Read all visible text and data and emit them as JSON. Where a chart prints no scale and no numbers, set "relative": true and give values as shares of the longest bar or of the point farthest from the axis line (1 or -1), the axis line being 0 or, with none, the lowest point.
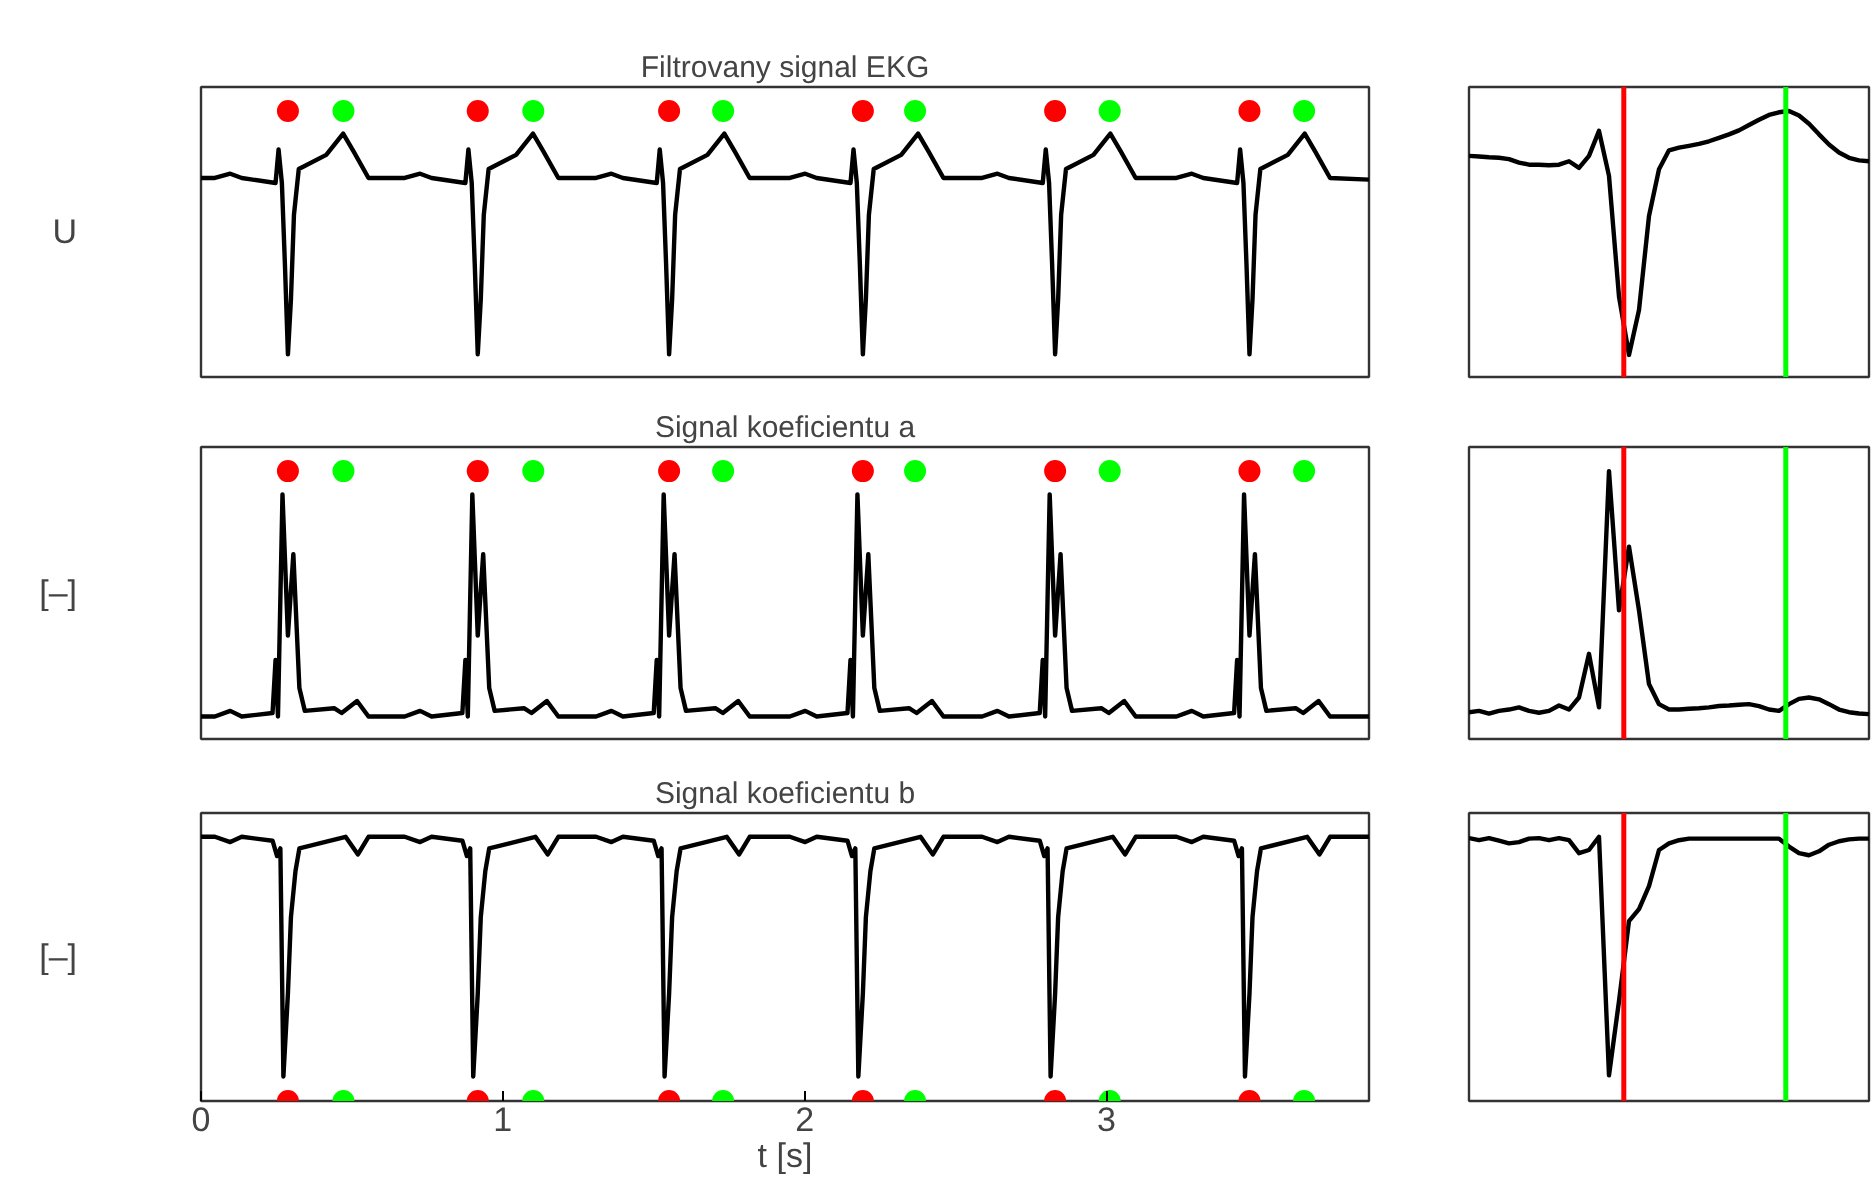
{
  "chart_data": [
    {
      "type": "line",
      "title": "Filtrovany signal EKG",
      "ylabel": "U",
      "relative": true,
      "xlim": [
        0,
        3.87
      ],
      "tick_labels": false,
      "series": [
        {
          "color": "#000000",
          "x": [
            0,
            0.046,
            0.097,
            0.135,
            0.247,
            0.257,
            0.268,
            0.278,
            0.288,
            0.298,
            0.308,
            0.324,
            0.415,
            0.471,
            0.505,
            0.555,
            0.675,
            0.726,
            0.764,
            0.876,
            0.886,
            0.897,
            0.907,
            0.917,
            0.927,
            0.937,
            0.953,
            1.044,
            1.1,
            1.134,
            1.184,
            1.309,
            1.36,
            1.398,
            1.51,
            1.52,
            1.531,
            1.541,
            1.551,
            1.561,
            1.571,
            1.587,
            1.678,
            1.734,
            1.768,
            1.818,
            1.951,
            2.002,
            2.04,
            2.152,
            2.162,
            2.173,
            2.183,
            2.193,
            2.203,
            2.213,
            2.229,
            2.32,
            2.376,
            2.41,
            2.46,
            2.588,
            2.639,
            2.677,
            2.789,
            2.799,
            2.81,
            2.82,
            2.83,
            2.84,
            2.85,
            2.866,
            2.957,
            3.013,
            3.047,
            3.097,
            3.232,
            3.283,
            3.321,
            3.433,
            3.443,
            3.454,
            3.464,
            3.474,
            3.484,
            3.494,
            3.51,
            3.601,
            3.657,
            3.691,
            3.741,
            3.87
          ],
          "values": [
            0.748,
            0.748,
            0.764,
            0.748,
            0.729,
            0.855,
            0.729,
            0.425,
            0.085,
            0.292,
            0.61,
            0.782,
            0.835,
            0.915,
            0.849,
            0.748,
            0.748,
            0.764,
            0.748,
            0.729,
            0.855,
            0.729,
            0.425,
            0.085,
            0.292,
            0.61,
            0.782,
            0.835,
            0.915,
            0.849,
            0.748,
            0.748,
            0.764,
            0.748,
            0.729,
            0.855,
            0.729,
            0.425,
            0.085,
            0.292,
            0.61,
            0.782,
            0.835,
            0.915,
            0.849,
            0.748,
            0.748,
            0.764,
            0.748,
            0.729,
            0.855,
            0.729,
            0.425,
            0.085,
            0.292,
            0.61,
            0.782,
            0.835,
            0.915,
            0.849,
            0.748,
            0.748,
            0.764,
            0.748,
            0.729,
            0.855,
            0.729,
            0.425,
            0.085,
            0.292,
            0.61,
            0.782,
            0.835,
            0.915,
            0.849,
            0.748,
            0.748,
            0.764,
            0.748,
            0.729,
            0.855,
            0.729,
            0.425,
            0.085,
            0.292,
            0.61,
            0.782,
            0.835,
            0.915,
            0.849,
            0.748,
            0.742
          ]
        },
        {
          "type": "scatter",
          "marker": "circle",
          "color": "#ff0000",
          "x": [
            0.288,
            0.917,
            1.551,
            2.193,
            2.83,
            3.474
          ],
          "values": [
            1,
            1,
            1,
            1,
            1,
            1
          ]
        },
        {
          "type": "scatter",
          "marker": "circle",
          "color": "#00ff00",
          "x": [
            0.472,
            1.101,
            1.73,
            2.366,
            3.011,
            3.655
          ],
          "values": [
            1,
            1,
            1,
            1,
            1,
            1
          ]
        }
      ]
    },
    {
      "type": "line",
      "relative": true,
      "tick_labels": false,
      "categories": [
        null,
        null,
        null,
        null,
        null,
        null,
        null,
        null,
        null,
        null,
        null,
        null,
        null,
        null,
        null,
        null,
        null,
        null,
        null,
        null,
        null,
        null,
        null,
        null,
        null,
        null,
        null,
        null,
        null,
        null,
        null,
        null,
        null,
        null,
        null,
        null,
        null,
        null,
        null,
        null,
        null
      ],
      "series": [
        {
          "color": "#000000",
          "values": [
            0.831,
            0.829,
            0.826,
            0.824,
            0.819,
            0.806,
            0.798,
            0.798,
            0.796,
            0.798,
            0.811,
            0.786,
            0.831,
            0.925,
            0.756,
            0.302,
            0.083,
            0.252,
            0.605,
            0.781,
            0.852,
            0.862,
            0.869,
            0.876,
            0.886,
            0.899,
            0.912,
            0.927,
            0.947,
            0.967,
            0.985,
            0.995,
            1.0,
            0.983,
            0.952,
            0.912,
            0.874,
            0.844,
            0.824,
            0.814,
            0.811
          ]
        }
      ]
    },
    {
      "type": "line",
      "title": "Signal koeficientu a",
      "ylabel": "[–]",
      "relative": true,
      "xlim": [
        0,
        3.87
      ],
      "tick_labels": false,
      "series": [
        {
          "color": "#000000",
          "x": [
            0,
            0.046,
            0.097,
            0.135,
            0.237,
            0.247,
            0.255,
            0.27,
            0.288,
            0.306,
            0.326,
            0.344,
            0.441,
            0.466,
            0.517,
            0.555,
            0.675,
            0.726,
            0.764,
            0.866,
            0.876,
            0.884,
            0.899,
            0.917,
            0.935,
            0.955,
            0.973,
            1.07,
            1.095,
            1.146,
            1.184,
            1.309,
            1.36,
            1.398,
            1.5,
            1.51,
            1.518,
            1.533,
            1.551,
            1.569,
            1.589,
            1.607,
            1.704,
            1.729,
            1.78,
            1.818,
            1.951,
            2.002,
            2.04,
            2.142,
            2.152,
            2.16,
            2.175,
            2.193,
            2.211,
            2.231,
            2.249,
            2.346,
            2.371,
            2.422,
            2.46,
            2.588,
            2.639,
            2.677,
            2.779,
            2.789,
            2.797,
            2.812,
            2.83,
            2.848,
            2.868,
            2.886,
            2.983,
            3.008,
            3.059,
            3.097,
            3.232,
            3.283,
            3.321,
            3.423,
            3.433,
            3.441,
            3.456,
            3.474,
            3.492,
            3.512,
            3.53,
            3.627,
            3.652,
            3.703,
            3.741,
            3.87
          ],
          "values": [
            0.084,
            0.084,
            0.105,
            0.084,
            0.097,
            0.295,
            0.084,
            0.913,
            0.386,
            0.69,
            0.19,
            0.105,
            0.115,
            0.097,
            0.142,
            0.084,
            0.084,
            0.105,
            0.084,
            0.097,
            0.295,
            0.084,
            0.913,
            0.386,
            0.69,
            0.19,
            0.105,
            0.115,
            0.097,
            0.142,
            0.084,
            0.084,
            0.105,
            0.084,
            0.097,
            0.295,
            0.084,
            0.913,
            0.386,
            0.69,
            0.19,
            0.105,
            0.115,
            0.097,
            0.142,
            0.084,
            0.084,
            0.105,
            0.084,
            0.097,
            0.295,
            0.084,
            0.913,
            0.386,
            0.69,
            0.19,
            0.105,
            0.115,
            0.097,
            0.142,
            0.084,
            0.084,
            0.105,
            0.084,
            0.097,
            0.295,
            0.084,
            0.913,
            0.386,
            0.69,
            0.19,
            0.105,
            0.115,
            0.097,
            0.142,
            0.084,
            0.084,
            0.105,
            0.084,
            0.097,
            0.295,
            0.084,
            0.913,
            0.386,
            0.69,
            0.19,
            0.105,
            0.115,
            0.097,
            0.142,
            0.084,
            0.084
          ]
        },
        {
          "type": "scatter",
          "marker": "circle",
          "color": "#ff0000",
          "x": [
            0.288,
            0.917,
            1.551,
            2.193,
            2.83,
            3.474
          ],
          "values": [
            1,
            1,
            1,
            1,
            1,
            1
          ]
        },
        {
          "type": "scatter",
          "marker": "circle",
          "color": "#00ff00",
          "x": [
            0.472,
            1.101,
            1.73,
            2.366,
            3.011,
            3.655
          ],
          "values": [
            1,
            1,
            1,
            1,
            1,
            1
          ]
        }
      ]
    },
    {
      "type": "line",
      "relative": true,
      "tick_labels": false,
      "categories": [
        null,
        null,
        null,
        null,
        null,
        null,
        null,
        null,
        null,
        null,
        null,
        null,
        null,
        null,
        null,
        null,
        null,
        null,
        null,
        null,
        null,
        null,
        null,
        null,
        null,
        null,
        null,
        null,
        null,
        null,
        null,
        null,
        null,
        null,
        null,
        null,
        null,
        null,
        null,
        null,
        null
      ],
      "series": [
        {
          "color": "#000000",
          "values": [
            0.1,
            0.105,
            0.095,
            0.105,
            0.11,
            0.118,
            0.105,
            0.098,
            0.105,
            0.125,
            0.11,
            0.155,
            0.318,
            0.118,
            1.0,
            0.48,
            0.718,
            0.48,
            0.205,
            0.13,
            0.11,
            0.11,
            0.113,
            0.115,
            0.118,
            0.123,
            0.125,
            0.128,
            0.13,
            0.123,
            0.11,
            0.105,
            0.13,
            0.15,
            0.155,
            0.148,
            0.13,
            0.11,
            0.1,
            0.095,
            0.093
          ]
        }
      ]
    },
    {
      "type": "line",
      "title": "Signal koeficientu b",
      "ylabel": "[–]",
      "xlabel": "t [s]",
      "relative": true,
      "xlim": [
        0,
        3.87
      ],
      "xticks": [
        0,
        1,
        2,
        3
      ],
      "tick_labels": "x",
      "series": [
        {
          "color": "#000000",
          "x": [
            0,
            0.046,
            0.097,
            0.135,
            0.237,
            0.252,
            0.263,
            0.273,
            0.288,
            0.298,
            0.313,
            0.326,
            0.479,
            0.52,
            0.555,
            0.675,
            0.726,
            0.764,
            0.866,
            0.881,
            0.892,
            0.902,
            0.917,
            0.927,
            0.942,
            0.955,
            1.108,
            1.149,
            1.184,
            1.309,
            1.36,
            1.398,
            1.5,
            1.515,
            1.526,
            1.536,
            1.551,
            1.561,
            1.576,
            1.589,
            1.742,
            1.783,
            1.818,
            1.951,
            2.002,
            2.04,
            2.142,
            2.157,
            2.168,
            2.178,
            2.193,
            2.203,
            2.218,
            2.231,
            2.384,
            2.425,
            2.46,
            2.588,
            2.639,
            2.677,
            2.779,
            2.794,
            2.805,
            2.815,
            2.83,
            2.84,
            2.855,
            2.868,
            3.021,
            3.062,
            3.097,
            3.232,
            3.283,
            3.321,
            3.423,
            3.438,
            3.449,
            3.459,
            3.474,
            3.484,
            3.499,
            3.512,
            3.665,
            3.706,
            3.741,
            3.87
          ],
          "values": [
            1.0,
            1.0,
            0.98,
            1.0,
            0.985,
            0.927,
            0.956,
            0.093,
            0.406,
            0.696,
            0.87,
            0.956,
            1.0,
            0.933,
            1.0,
            1.0,
            0.98,
            1.0,
            0.985,
            0.927,
            0.956,
            0.093,
            0.406,
            0.696,
            0.87,
            0.956,
            1.0,
            0.933,
            1.0,
            1.0,
            0.98,
            1.0,
            0.985,
            0.927,
            0.956,
            0.093,
            0.406,
            0.696,
            0.87,
            0.956,
            1.0,
            0.933,
            1.0,
            1.0,
            0.98,
            1.0,
            0.985,
            0.927,
            0.956,
            0.093,
            0.406,
            0.696,
            0.87,
            0.956,
            1.0,
            0.933,
            1.0,
            1.0,
            0.98,
            1.0,
            0.985,
            0.927,
            0.956,
            0.093,
            0.406,
            0.696,
            0.87,
            0.956,
            1.0,
            0.933,
            1.0,
            1.0,
            0.98,
            1.0,
            0.985,
            0.927,
            0.956,
            0.093,
            0.406,
            0.696,
            0.87,
            0.956,
            1.0,
            0.933,
            1.0,
            1.0
          ]
        },
        {
          "type": "scatter",
          "marker": "circle",
          "color": "#ff0000",
          "x": [
            0.288,
            0.917,
            1.551,
            2.193,
            2.83,
            3.474
          ],
          "values": [
            0,
            0,
            0,
            0,
            0,
            0
          ]
        },
        {
          "type": "scatter",
          "marker": "circle",
          "color": "#00ff00",
          "x": [
            0.472,
            1.101,
            1.73,
            2.366,
            3.011,
            3.655
          ],
          "values": [
            0,
            0,
            0,
            0,
            0,
            0
          ]
        }
      ]
    },
    {
      "type": "line",
      "relative": true,
      "tick_labels": false,
      "categories": [
        null,
        null,
        null,
        null,
        null,
        null,
        null,
        null,
        null,
        null,
        null,
        null,
        null,
        null,
        null,
        null,
        null,
        null,
        null,
        null,
        null,
        null,
        null,
        null,
        null,
        null,
        null,
        null,
        null,
        null,
        null,
        null,
        null,
        null,
        null,
        null,
        null,
        null,
        null,
        null,
        null
      ],
      "series": [
        {
          "color": "#000000",
          "values": [
            0.995,
            0.987,
            0.995,
            0.985,
            0.975,
            0.98,
            0.993,
            0.995,
            0.987,
            0.995,
            0.987,
            0.938,
            0.95,
            1.0,
            0.097,
            0.378,
            0.681,
            0.726,
            0.813,
            0.95,
            0.975,
            0.987,
            0.993,
            0.993,
            0.993,
            0.993,
            0.993,
            0.993,
            0.993,
            0.993,
            0.993,
            0.993,
            0.963,
            0.938,
            0.93,
            0.945,
            0.97,
            0.983,
            0.99,
            0.993,
            0.993
          ]
        }
      ]
    }
  ]
}
